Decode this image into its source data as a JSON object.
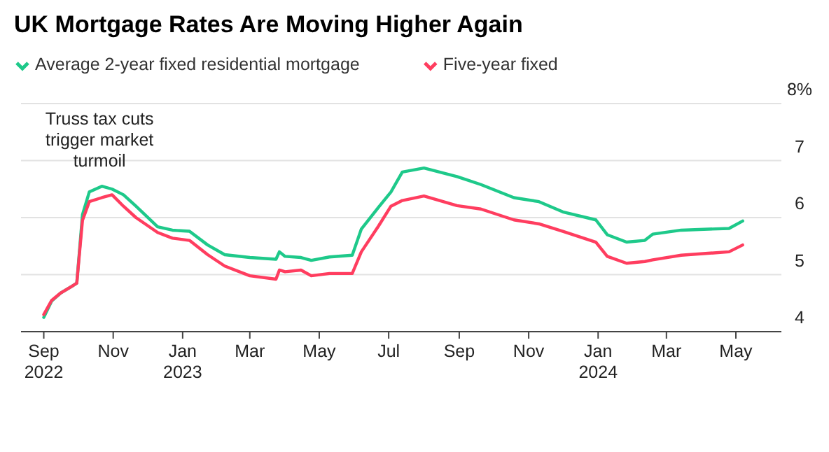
{
  "chart_data": {
    "type": "line",
    "title": "UK Mortgage Rates Are Moving Higher Again",
    "legend": "top left",
    "grid": "y",
    "line_style": "solid",
    "marker": "none",
    "xlim": [
      "2022-08-12",
      "2024-06-10"
    ],
    "ylim": [
      4,
      8
    ],
    "yticks": [
      4,
      5,
      6,
      7,
      {
        "value": 8,
        "label": "8%"
      }
    ],
    "xticks": [
      {
        "value": "2022-09-01",
        "label": "Sep\n2022"
      },
      {
        "value": "2022-11-01",
        "label": "Nov"
      },
      {
        "value": "2023-01-01",
        "label": "Jan\n2023"
      },
      {
        "value": "2023-03-01",
        "label": "Mar"
      },
      {
        "value": "2023-05-01",
        "label": "May"
      },
      {
        "value": "2023-07-01",
        "label": "Jul"
      },
      {
        "value": "2023-09-01",
        "label": "Sep"
      },
      {
        "value": "2023-11-01",
        "label": "Nov"
      },
      {
        "value": "2024-01-01",
        "label": "Jan\n2024"
      },
      {
        "value": "2024-03-01",
        "label": "Mar"
      },
      {
        "value": "2024-05-01",
        "label": "May"
      }
    ],
    "annotations": [
      {
        "text": "Truss tax cuts\ntrigger market\nturmoil",
        "x": "2022-10-20",
        "y": 6.6
      }
    ],
    "x": [
      "2022-09-01",
      "2022-09-08",
      "2022-09-16",
      "2022-09-26",
      "2022-09-30",
      "2022-10-05",
      "2022-10-11",
      "2022-10-22",
      "2022-10-31",
      "2022-11-10",
      "2022-11-21",
      "2022-12-10",
      "2022-12-23",
      "2023-01-07",
      "2023-01-23",
      "2023-02-07",
      "2023-03-01",
      "2023-03-24",
      "2023-03-27",
      "2023-04-01",
      "2023-04-15",
      "2023-04-24",
      "2023-05-10",
      "2023-05-30",
      "2023-06-07",
      "2023-06-22",
      "2023-07-03",
      "2023-07-13",
      "2023-08-01",
      "2023-08-30",
      "2023-09-20",
      "2023-10-19",
      "2023-11-10",
      "2023-12-01",
      "2023-12-30",
      "2024-01-09",
      "2024-01-26",
      "2024-02-11",
      "2024-02-18",
      "2024-03-14",
      "2024-04-25",
      "2024-05-07"
    ],
    "series": [
      {
        "name": "Average 2-year fixed residential mortgage",
        "color": "#1ec98a",
        "values": [
          4.25,
          4.54,
          4.68,
          4.8,
          4.85,
          6.05,
          6.45,
          6.55,
          6.5,
          6.4,
          6.2,
          5.84,
          5.78,
          5.76,
          5.52,
          5.35,
          5.3,
          5.27,
          5.4,
          5.32,
          5.3,
          5.25,
          5.31,
          5.34,
          5.8,
          6.18,
          6.45,
          6.8,
          6.87,
          6.72,
          6.58,
          6.35,
          6.28,
          6.1,
          5.96,
          5.7,
          5.57,
          5.6,
          5.71,
          5.78,
          5.81,
          5.94
        ]
      },
      {
        "name": "Five-year fixed",
        "color": "#ff3d5f",
        "values": [
          4.3,
          4.55,
          4.68,
          4.8,
          4.85,
          5.95,
          6.28,
          6.35,
          6.4,
          6.2,
          6.0,
          5.74,
          5.64,
          5.6,
          5.35,
          5.15,
          4.98,
          4.92,
          5.08,
          5.05,
          5.08,
          4.98,
          5.02,
          5.02,
          5.4,
          5.85,
          6.2,
          6.3,
          6.38,
          6.21,
          6.15,
          5.96,
          5.89,
          5.76,
          5.57,
          5.32,
          5.2,
          5.23,
          5.26,
          5.34,
          5.4,
          5.52
        ]
      }
    ]
  }
}
